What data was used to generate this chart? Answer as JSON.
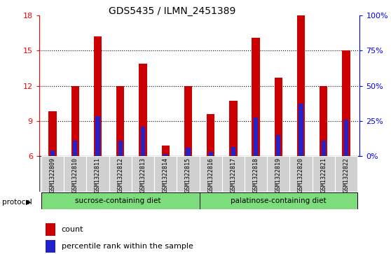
{
  "title": "GDS5435 / ILMN_2451389",
  "samples": [
    "GSM1322809",
    "GSM1322810",
    "GSM1322811",
    "GSM1322812",
    "GSM1322813",
    "GSM1322814",
    "GSM1322815",
    "GSM1322816",
    "GSM1322817",
    "GSM1322818",
    "GSM1322819",
    "GSM1322820",
    "GSM1322821",
    "GSM1322822"
  ],
  "count_values": [
    9.8,
    12.0,
    16.2,
    12.0,
    13.9,
    6.9,
    12.0,
    9.6,
    10.7,
    16.1,
    12.7,
    18.0,
    12.0,
    15.0
  ],
  "percentile_values": [
    6.5,
    7.3,
    9.4,
    7.3,
    8.5,
    6.2,
    6.7,
    6.4,
    6.8,
    9.3,
    7.8,
    10.5,
    7.3,
    9.1
  ],
  "ylim": [
    6,
    18
  ],
  "yticks": [
    6,
    9,
    12,
    15,
    18
  ],
  "right_yticks": [
    0,
    25,
    50,
    75,
    100
  ],
  "bar_color": "#cc0000",
  "percentile_color": "#2222cc",
  "title_fontsize": 10,
  "tick_fontsize": 8,
  "legend_fontsize": 8,
  "xlabel_area_color": "#d0d0d0",
  "protocol_color": "#7ddd7d",
  "bar_width": 0.35
}
